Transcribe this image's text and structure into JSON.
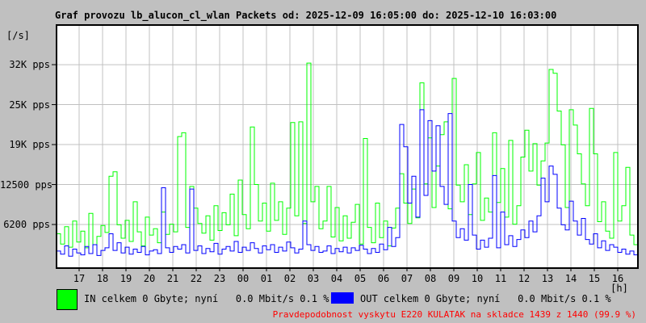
{
  "title": "Graf provozu lb_alucon_cl_wlan Packets od: 2025-12-09 16:05:00 do: 2025-12-10 16:03:00",
  "y_axis": {
    "unit": "[/s]",
    "ticks": [
      {
        "label": "32K pps",
        "value": 31250
      },
      {
        "label": "25K pps",
        "value": 25000
      },
      {
        "label": "19K pps",
        "value": 18750
      },
      {
        "label": "12500 pps",
        "value": 12500
      },
      {
        "label": "6200 pps",
        "value": 6250
      }
    ]
  },
  "x_axis": {
    "unit": "[h]",
    "hours": [
      "17",
      "18",
      "19",
      "20",
      "21",
      "22",
      "23",
      "00",
      "01",
      "02",
      "03",
      "04",
      "05",
      "06",
      "07",
      "08",
      "09",
      "10",
      "11",
      "12",
      "13",
      "14",
      "15",
      "16"
    ]
  },
  "legend": {
    "in": {
      "label": "IN celkem 0 Gbyte; nyní   0.0 Mbit/s 0.1 %",
      "color": "#00ff00"
    },
    "out": {
      "label": "OUT celkem 0 Gbyte; nyní   0.0 Mbit/s 0.1 %",
      "color": "#0000ff"
    }
  },
  "footer": {
    "warning": "Pravdepodobnost vyskytu E220 KULATAK na skladce 1439 z 1440 (99.9 %)"
  },
  "colors": {
    "background": "#c0c0c0",
    "plot_background": "#ffffff",
    "grid": "#c0c0c0",
    "border": "#000000",
    "in": "#00ff00",
    "out": "#0000ff",
    "warning": "#ff0000",
    "text": "#000000"
  },
  "chart_data": {
    "type": "line",
    "title": "Graf provozu lb_alucon_cl_wlan Packets",
    "x_start": "2025-12-09 16:05:00",
    "x_end": "2025-12-10 16:03:00",
    "interval_minutes": 10,
    "xlabel": "[h]",
    "ylabel": "[/s] (pps)",
    "ylim": [
      0,
      37500
    ],
    "grid": true,
    "legend_position": "bottom",
    "series": [
      {
        "name": "IN",
        "color": "#00ff00",
        "values": [
          4800,
          3200,
          5900,
          2700,
          6800,
          3500,
          5200,
          2600,
          8000,
          3100,
          4400,
          6100,
          5000,
          13800,
          14500,
          6200,
          4100,
          6900,
          3600,
          9800,
          5100,
          2900,
          7400,
          4600,
          5600,
          3400,
          8200,
          4700,
          6300,
          5100,
          20000,
          20600,
          5800,
          12200,
          8800,
          6400,
          4900,
          7600,
          3800,
          9200,
          5300,
          8100,
          6200,
          11000,
          4500,
          13200,
          7800,
          5600,
          21500,
          12500,
          6800,
          9600,
          5200,
          12700,
          6900,
          9800,
          4700,
          8800,
          22200,
          7600,
          22300,
          6400,
          31500,
          9800,
          12200,
          5600,
          6800,
          12200,
          4300,
          8900,
          3700,
          7600,
          4100,
          6600,
          9400,
          3200,
          19700,
          5800,
          3400,
          9600,
          4200,
          6800,
          2900,
          5700,
          8800,
          14200,
          9600,
          6400,
          11800,
          7300,
          28400,
          12600,
          19800,
          8900,
          15400,
          20300,
          22300,
          8700,
          29100,
          12400,
          9800,
          15600,
          7800,
          12600,
          17500,
          6900,
          10400,
          8200,
          20600,
          9700,
          15000,
          7400,
          19400,
          6300,
          9200,
          16800,
          21000,
          14600,
          18900,
          12400,
          16200,
          19000,
          30500,
          29900,
          24000,
          18700,
          8900,
          24200,
          21800,
          17300,
          12600,
          9200,
          24400,
          17300,
          6700,
          9800,
          5200,
          4100,
          17500,
          6800,
          9200,
          15200,
          4600,
          3100,
          7800
        ]
      },
      {
        "name": "OUT",
        "color": "#0000ff",
        "values": [
          2100,
          1600,
          2900,
          1300,
          2400,
          1800,
          1500,
          2800,
          1700,
          3100,
          1400,
          2200,
          2600,
          4800,
          2200,
          3400,
          1800,
          2700,
          1600,
          2400,
          1900,
          2800,
          1500,
          2100,
          2300,
          1700,
          12000,
          2600,
          1900,
          2800,
          2400,
          3100,
          1800,
          11800,
          2200,
          2900,
          1700,
          2500,
          2000,
          3300,
          1600,
          2400,
          2800,
          2100,
          3600,
          1900,
          2700,
          2200,
          3400,
          2500,
          1800,
          2900,
          2300,
          3100,
          1900,
          2700,
          2100,
          3500,
          2600,
          1800,
          2400,
          6800,
          3100,
          2200,
          2800,
          1900,
          2100,
          2900,
          1700,
          2500,
          2000,
          2700,
          1800,
          2600,
          2200,
          3000,
          2400,
          1700,
          2500,
          1900,
          3200,
          2300,
          5800,
          2800,
          4200,
          21900,
          18400,
          9600,
          13800,
          7400,
          24200,
          10800,
          22500,
          14600,
          21700,
          12200,
          9400,
          23600,
          6800,
          4200,
          5600,
          3800,
          12500,
          4600,
          2400,
          3800,
          2700,
          4100,
          13900,
          2600,
          8200,
          3100,
          4500,
          2800,
          3900,
          5400,
          4200,
          6800,
          5100,
          7600,
          13500,
          9800,
          15400,
          14100,
          8800,
          6200,
          5400,
          9900,
          6800,
          4600,
          7200,
          3900,
          3200,
          4800,
          2600,
          3700,
          2200,
          3100,
          2700,
          1900,
          2400,
          1600,
          2100,
          1500,
          3600
        ]
      }
    ]
  }
}
